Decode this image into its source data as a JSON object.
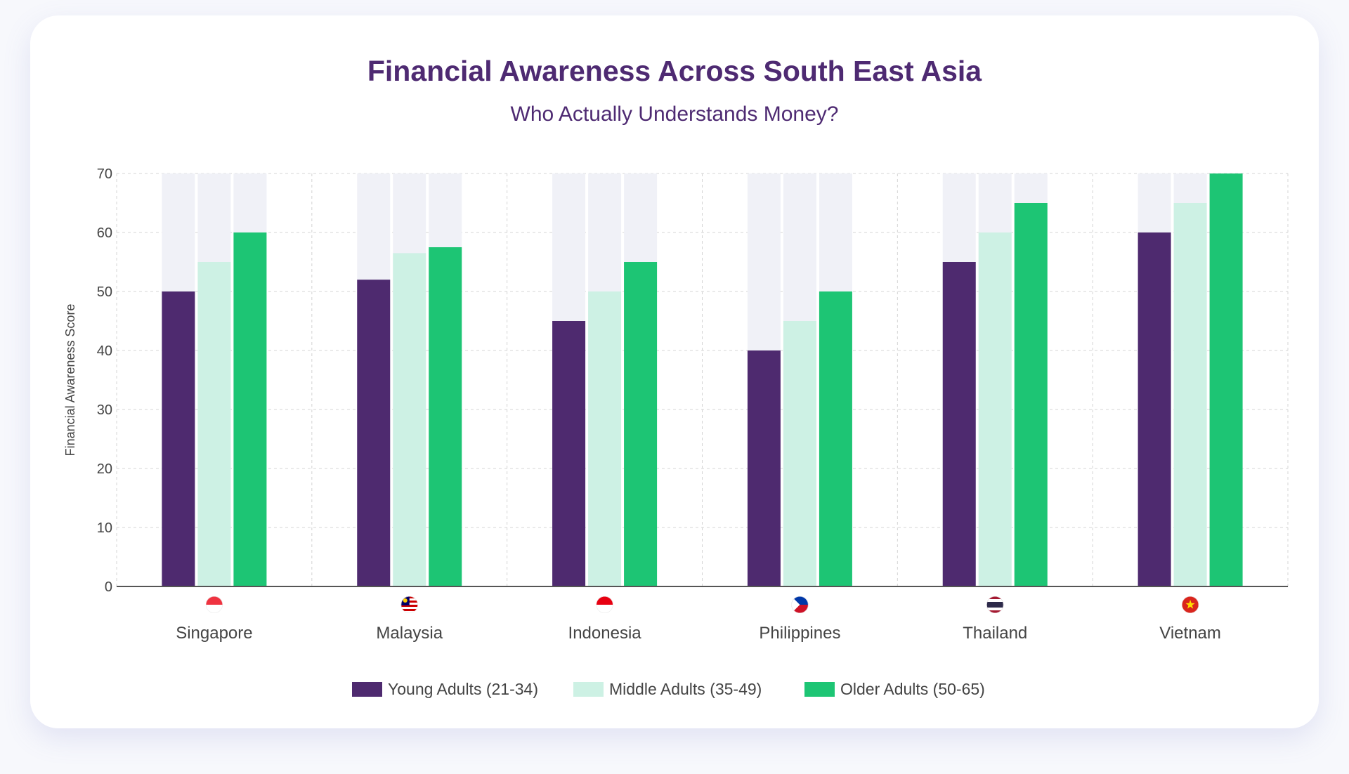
{
  "chart_data": {
    "type": "bar",
    "title": "Financial Awareness Across South East Asia",
    "subtitle": "Who Actually Understands Money?",
    "ylabel": "Financial Awareness Score",
    "xlabel": "",
    "ylim": [
      0,
      70
    ],
    "yticks": [
      0,
      10,
      20,
      30,
      40,
      50,
      60,
      70
    ],
    "grid": true,
    "legend_position": "bottom",
    "categories": [
      "Singapore",
      "Malaysia",
      "Indonesia",
      "Philippines",
      "Thailand",
      "Vietnam"
    ],
    "flag_icons": [
      "singapore-flag-icon",
      "malaysia-flag-icon",
      "indonesia-flag-icon",
      "philippines-flag-icon",
      "thailand-flag-icon",
      "vietnam-flag-icon"
    ],
    "series": [
      {
        "name": "Young Adults (21-34)",
        "color": "#4e2a6f",
        "values": [
          50,
          52,
          45,
          40,
          55,
          60
        ]
      },
      {
        "name": "Middle Adults (35-49)",
        "color": "#cdf1e4",
        "values": [
          55,
          56.5,
          50,
          45,
          60,
          65
        ]
      },
      {
        "name": "Older Adults (50-65)",
        "color": "#1dc574",
        "values": [
          60,
          57.5,
          55,
          50,
          65,
          70
        ]
      }
    ],
    "colors": {
      "track": "#f0f1f7",
      "grid": "#d4d4d4",
      "axis": "#555555",
      "text": "#444444",
      "title": "#4e2a72"
    }
  }
}
